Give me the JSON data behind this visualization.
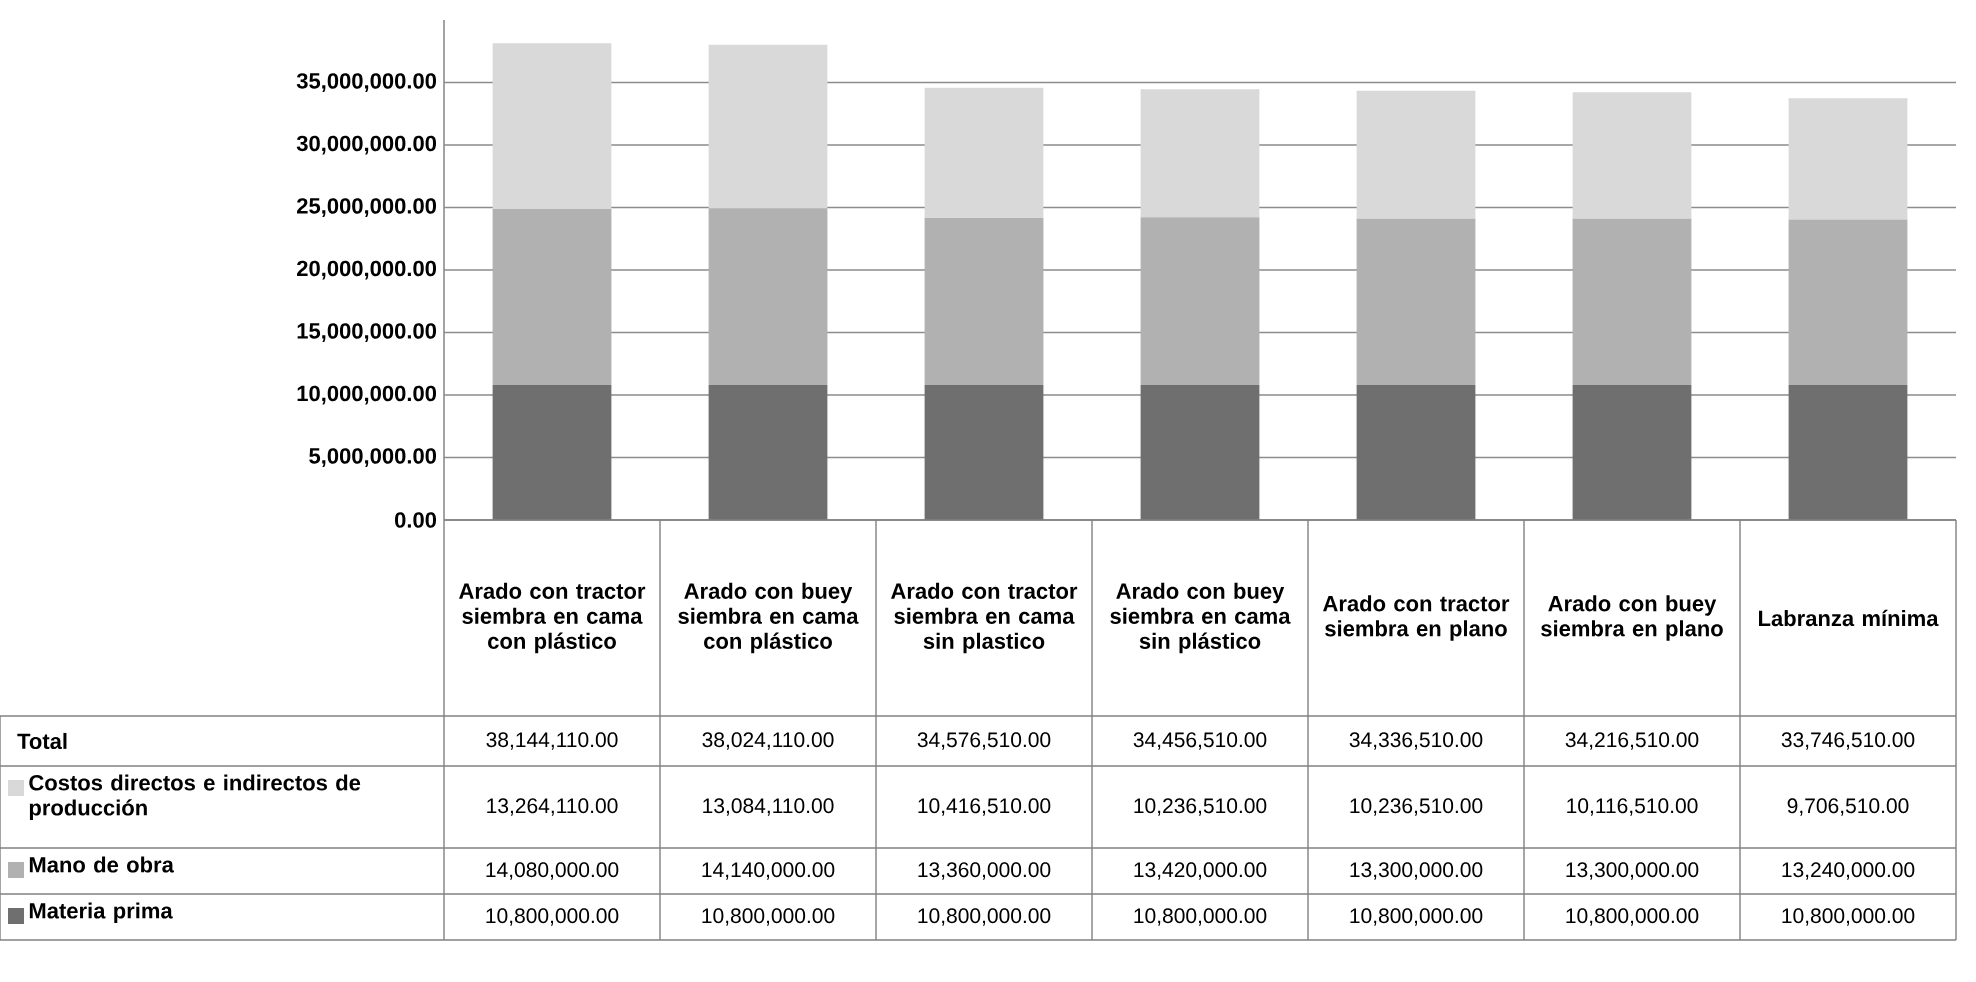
{
  "chart_data": {
    "type": "bar",
    "stacked": true,
    "categories": [
      "Arado con tractor siembra en cama con plástico",
      "Arado con buey siembra en cama con plástico",
      "Arado con tractor siembra en cama sin plastico",
      "Arado con buey siembra en cama sin plástico",
      "Arado con tractor siembra en plano",
      "Arado con buey siembra en plano",
      "Labranza mínima"
    ],
    "series": [
      {
        "name": "Materia prima",
        "color": "#6f6f6f",
        "values": [
          10800000,
          10800000,
          10800000,
          10800000,
          10800000,
          10800000,
          10800000
        ],
        "value_labels": [
          "10,800,000.00",
          "10,800,000.00",
          "10,800,000.00",
          "10,800,000.00",
          "10,800,000.00",
          "10,800,000.00",
          "10,800,000.00"
        ]
      },
      {
        "name": "Mano de obra",
        "color": "#b1b1b1",
        "values": [
          14080000,
          14140000,
          13360000,
          13420000,
          13300000,
          13300000,
          13240000
        ],
        "value_labels": [
          "14,080,000.00",
          "14,140,000.00",
          "13,360,000.00",
          "13,420,000.00",
          "13,300,000.00",
          "13,300,000.00",
          "13,240,000.00"
        ]
      },
      {
        "name": "Costos directos e indirectos de producción",
        "color": "#d9d9d9",
        "values": [
          13264110,
          13084110,
          10416510,
          10236510,
          10236510,
          10116510,
          9706510
        ],
        "value_labels": [
          "13,264,110.00",
          "13,084,110.00",
          "10,416,510.00",
          "10,236,510.00",
          "10,236,510.00",
          "10,116,510.00",
          "9,706,510.00"
        ]
      }
    ],
    "ylim": [
      0,
      40000000
    ],
    "yticks": [
      {
        "value": 0,
        "label": "0.00"
      },
      {
        "value": 5000000,
        "label": "5,000,000.00"
      },
      {
        "value": 10000000,
        "label": "10,000,000.00"
      },
      {
        "value": 15000000,
        "label": "15,000,000.00"
      },
      {
        "value": 20000000,
        "label": "20,000,000.00"
      },
      {
        "value": 25000000,
        "label": "25,000,000.00"
      },
      {
        "value": 30000000,
        "label": "30,000,000.00"
      },
      {
        "value": 35000000,
        "label": "35,000,000.00"
      }
    ],
    "grid": "y",
    "legend": "bottom left",
    "annotations": [
      "Total",
      "38,144,110.00",
      "38,024,110.00",
      "34,576,510.00",
      "34,456,510.00",
      "34,336,510.00",
      "34,216,510.00",
      "33,746,510.00"
    ]
  }
}
